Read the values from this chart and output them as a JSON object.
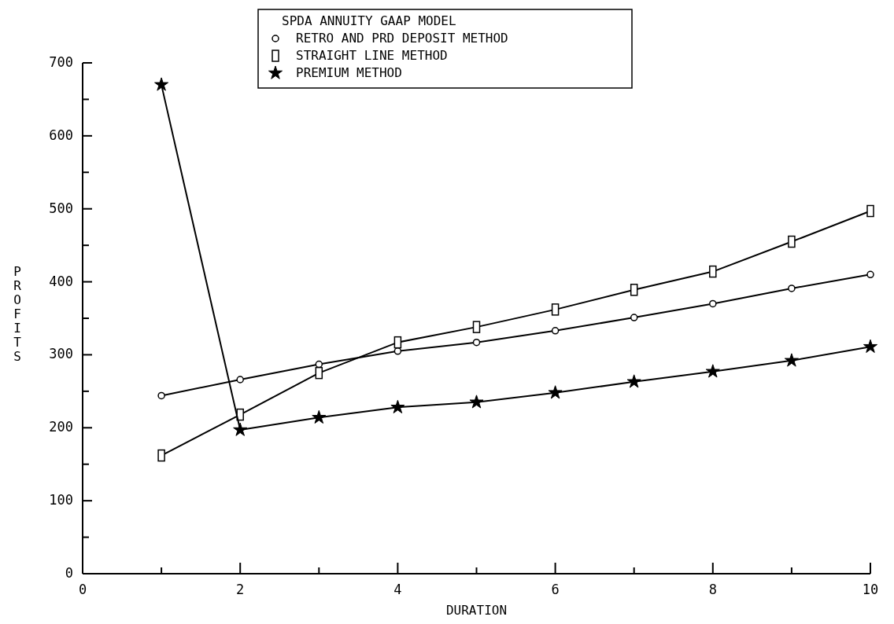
{
  "chart_data": {
    "type": "line",
    "legend_title": "SPDA ANNUITY GAAP MODEL",
    "xlabel": "DURATION",
    "ylabel": "PROFITS",
    "legend": "top",
    "x": [
      1,
      2,
      3,
      4,
      5,
      6,
      7,
      8,
      9,
      10
    ],
    "xlim": [
      0,
      10
    ],
    "ylim": [
      0,
      700
    ],
    "xticks": [
      0,
      {
        "value": 1,
        "label": null
      },
      2,
      {
        "value": 3,
        "label": null
      },
      4,
      {
        "value": 5,
        "label": null
      },
      6,
      {
        "value": 7,
        "label": null
      },
      8,
      {
        "value": 9,
        "label": null
      },
      10
    ],
    "yticks": [
      0,
      {
        "value": 50,
        "label": null
      },
      100,
      {
        "value": 150,
        "label": null
      },
      200,
      {
        "value": 250,
        "label": null
      },
      300,
      {
        "value": 350,
        "label": null
      },
      400,
      {
        "value": 450,
        "label": null
      },
      500,
      {
        "value": 550,
        "label": null
      },
      600,
      {
        "value": 650,
        "label": null
      },
      700
    ],
    "series": [
      {
        "name": "RETRO AND PRD DEPOSIT METHOD",
        "color": "#000000",
        "marker": "circle",
        "values": [
          244,
          266,
          287,
          305,
          317,
          333,
          351,
          370,
          391,
          410
        ]
      },
      {
        "name": "STRAIGHT LINE METHOD",
        "color": "#000000",
        "marker": "square",
        "values": [
          162,
          218,
          275,
          317,
          338,
          362,
          389,
          414,
          455,
          497
        ]
      },
      {
        "name": "PREMIUM METHOD",
        "color": "#000000",
        "marker": "star",
        "values": [
          670,
          197,
          214,
          228,
          235,
          248,
          263,
          277,
          292,
          311
        ]
      }
    ]
  }
}
